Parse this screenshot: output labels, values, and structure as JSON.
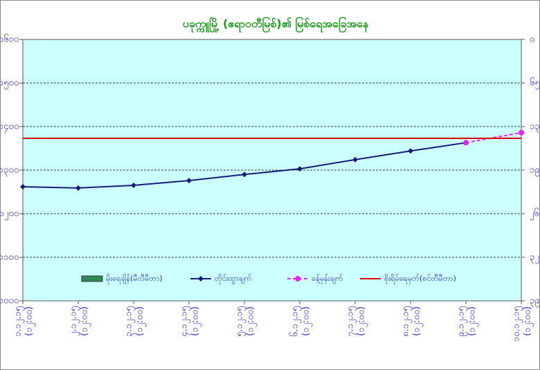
{
  "chart_data": {
    "type": "line",
    "title": "ပခုက္ကူမြို့ (ဧရာဝတီမြစ်)၏ မြစ်ရေအခြေအနေ",
    "categories": [
      "၁.၁၂.၁၅",
      "၂.၁၂.၁၅",
      "၃.၁၂.၁၅",
      "၄.၁၂.၁၅",
      "၅.၁၂.၁၅",
      "၆.၁၂.၁၅",
      "၇.၁၂.၁၅",
      "၈.၁၂.၁၅",
      "၉.၁၂.၁၅",
      "၁၀.၁၂.၁၅"
    ],
    "category_times": [
      "(၁၂:၀၀)",
      "(၁၂:၀၀)",
      "(၁၂:၀၀)",
      "(၁၂:၀၀)",
      "(၁၂:၀၀)",
      "(၁၂:၀၀)",
      "(၁၂:၀၀)",
      "(၁၂:၀၀)",
      "(၁၂:၀၀)",
      "(၁၂:၀၀)"
    ],
    "series": [
      {
        "name": "မိုးရေချိန်(မီလီမီတာ)",
        "kind": "bar",
        "axis": "y2",
        "color": "#2e8b57",
        "values": [
          0,
          0,
          0,
          0,
          0,
          0,
          0,
          0,
          0,
          0
        ]
      },
      {
        "name": "တိုင်းထွာချက်",
        "kind": "line",
        "color": "#1a1a7a",
        "marker": "diamond",
        "values": [
          1262,
          1259,
          1265,
          1276,
          1290,
          1303,
          1324,
          1344,
          1363,
          null
        ]
      },
      {
        "name": "ခန့်မှန်းချက်",
        "kind": "dashed",
        "color": "#ee22ee",
        "marker": "circle",
        "values": [
          null,
          null,
          null,
          null,
          null,
          null,
          null,
          null,
          1363,
          1386
        ]
      },
      {
        "name": "စိုးရိမ်ရေမှတ်(စင်တီမီတာ)",
        "kind": "level",
        "color": "#dd0000",
        "values": [
          1373,
          1373,
          1373,
          1373,
          1373,
          1373,
          1373,
          1373,
          1373,
          1373
        ]
      }
    ],
    "ylim": [
      1000,
      1600
    ],
    "yticks": [
      {
        "value": 1000,
        "label": "၁၀၀၀"
      },
      {
        "value": 1100,
        "label": "၁၁၀၀"
      },
      {
        "value": 1200,
        "label": "၁၂၀၀"
      },
      {
        "value": 1300,
        "label": "၁၃၀၀"
      },
      {
        "value": 1400,
        "label": "၁၄၀၀"
      },
      {
        "value": 1500,
        "label": "၁၅၀၀"
      },
      {
        "value": 1600,
        "label": "၁၆၀၀"
      }
    ],
    "y2lim": [
      0,
      390
    ],
    "y2_reversed": true,
    "y2ticks": [
      {
        "value": 0,
        "label": "၀"
      },
      {
        "value": 65,
        "label": "၆၅"
      },
      {
        "value": 130,
        "label": "၁၃၀"
      },
      {
        "value": 195,
        "label": "၁၉၅"
      },
      {
        "value": 260,
        "label": "၂၆၀"
      },
      {
        "value": 325,
        "label": "၃၂၅"
      },
      {
        "value": 390,
        "label": "၃၉၀"
      }
    ],
    "grid": true,
    "plot_background": "#ccffff"
  }
}
